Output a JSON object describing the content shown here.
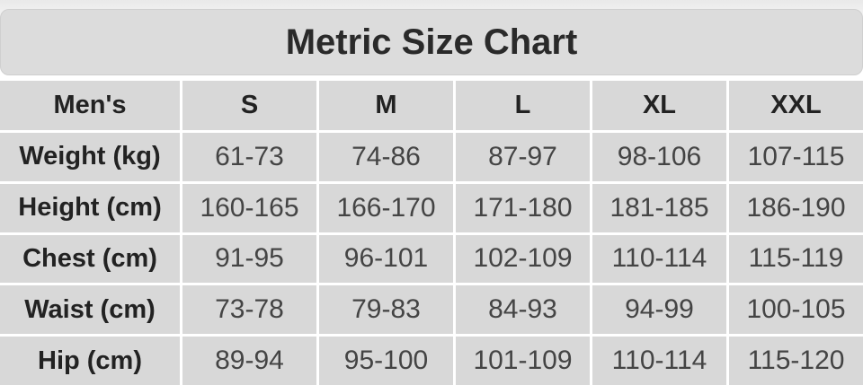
{
  "header": {
    "title": "Metric Size Chart"
  },
  "table": {
    "columns": [
      "Men's",
      "S",
      "M",
      "L",
      "XL",
      "XXL"
    ],
    "rows": [
      [
        "Weight (kg)",
        "61-73",
        "74-86",
        "87-97",
        "98-106",
        "107-115"
      ],
      [
        "Height (cm)",
        "160-165",
        "166-170",
        "171-180",
        "181-185",
        "186-190"
      ],
      [
        "Chest (cm)",
        "91-95",
        "96-101",
        "102-109",
        "110-114",
        "115-119"
      ],
      [
        "Waist (cm)",
        "73-78",
        "79-83",
        "84-93",
        "94-99",
        "100-105"
      ],
      [
        "Hip (cm)",
        "89-94",
        "95-100",
        "101-109",
        "110-114",
        "115-120"
      ]
    ]
  }
}
